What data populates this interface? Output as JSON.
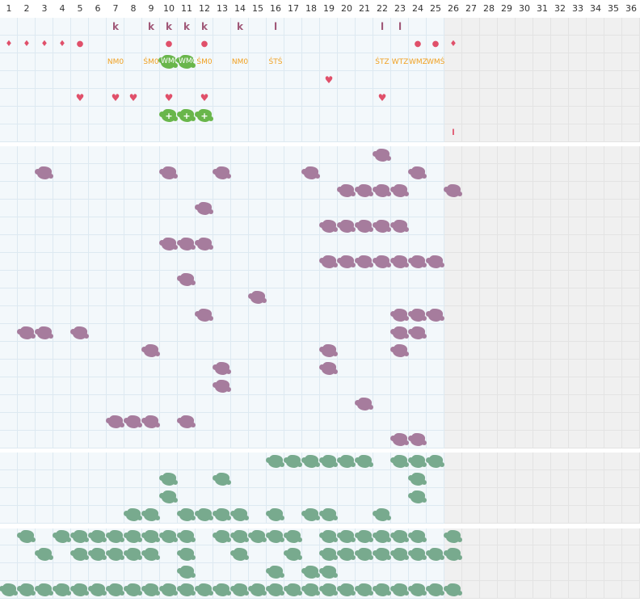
{
  "columns": [
    "1",
    "2",
    "3",
    "4",
    "5",
    "6",
    "7",
    "8",
    "9",
    "10",
    "11",
    "12",
    "13",
    "14",
    "15",
    "16",
    "17",
    "18",
    "19",
    "20",
    "21",
    "22",
    "23",
    "24",
    "25",
    "26",
    "27",
    "28",
    "29",
    "30",
    "31",
    "32",
    "33",
    "34",
    "35",
    "36"
  ],
  "symbols": {
    "drop": "♦",
    "dot": "●",
    "heart": "♥",
    "plus": "+"
  },
  "colors": {
    "purple": "#a67c9d",
    "green": "#78aa8e",
    "light_green": "#69b64b",
    "red": "#e0506a",
    "orange": "#f0a020",
    "mauve": "#a05878"
  },
  "header_row_k": [
    {
      "col": 7,
      "text": "k"
    },
    {
      "col": 9,
      "text": "k"
    },
    {
      "col": 10,
      "text": "k"
    },
    {
      "col": 11,
      "text": "k"
    },
    {
      "col": 12,
      "text": "k"
    },
    {
      "col": 14,
      "text": "k"
    },
    {
      "col": 16,
      "text": "l"
    },
    {
      "col": 22,
      "text": "l"
    },
    {
      "col": 23,
      "text": "l"
    },
    {
      "col": 26,
      "text": "l"
    }
  ],
  "drops": [
    1,
    2,
    3,
    4,
    26
  ],
  "dots": [
    5,
    10,
    12,
    24,
    25
  ],
  "hearts": [
    {
      "col": 19,
      "row": 4
    },
    {
      "col": 5,
      "row": 5
    },
    {
      "col": 7,
      "row": 5
    },
    {
      "col": 8,
      "row": 5
    },
    {
      "col": 10,
      "row": 5
    },
    {
      "col": 12,
      "row": 5
    },
    {
      "col": 22,
      "row": 5
    }
  ],
  "codes": [
    {
      "col": 7,
      "text": "NМ0"
    },
    {
      "col": 9,
      "text": "ŚМ0"
    },
    {
      "col": 12,
      "text": "ŚМ0"
    },
    {
      "col": 14,
      "text": "NМ0"
    },
    {
      "col": 16,
      "text": "ŚТŚ"
    },
    {
      "col": 22,
      "text": "ŚТZ"
    },
    {
      "col": 23,
      "text": "WТZ"
    },
    {
      "col": 24,
      "text": "WМZ"
    },
    {
      "col": 25,
      "text": "WМŚ"
    }
  ],
  "green_codes": [
    {
      "col": 10,
      "text": "WМ0"
    },
    {
      "col": 11,
      "text": "WМ0"
    }
  ],
  "plus_blobs": [
    10,
    11,
    12
  ],
  "purple_blobs": [
    [
      8,
      22
    ],
    [
      9,
      3
    ],
    [
      9,
      10
    ],
    [
      9,
      13
    ],
    [
      9,
      18
    ],
    [
      9,
      24
    ],
    [
      10,
      20
    ],
    [
      10,
      21
    ],
    [
      10,
      22
    ],
    [
      10,
      23
    ],
    [
      10,
      26
    ],
    [
      11,
      12
    ],
    [
      12,
      19
    ],
    [
      12,
      20
    ],
    [
      12,
      21
    ],
    [
      12,
      22
    ],
    [
      12,
      23
    ],
    [
      13,
      10
    ],
    [
      13,
      11
    ],
    [
      13,
      12
    ],
    [
      14,
      19
    ],
    [
      14,
      20
    ],
    [
      14,
      21
    ],
    [
      14,
      22
    ],
    [
      14,
      23
    ],
    [
      14,
      24
    ],
    [
      14,
      25
    ],
    [
      15,
      11
    ],
    [
      16,
      15
    ],
    [
      17,
      12
    ],
    [
      17,
      23
    ],
    [
      17,
      24
    ],
    [
      17,
      25
    ],
    [
      18,
      2
    ],
    [
      18,
      3
    ],
    [
      18,
      5
    ],
    [
      18,
      23
    ],
    [
      18,
      24
    ],
    [
      19,
      9
    ],
    [
      19,
      19
    ],
    [
      19,
      23
    ],
    [
      20,
      13
    ],
    [
      20,
      19
    ],
    [
      21,
      13
    ],
    [
      22,
      21
    ],
    [
      23,
      7
    ],
    [
      23,
      8
    ],
    [
      23,
      9
    ],
    [
      23,
      11
    ],
    [
      24,
      23
    ],
    [
      24,
      24
    ]
  ],
  "green_blobs": [
    [
      25,
      16
    ],
    [
      25,
      17
    ],
    [
      25,
      18
    ],
    [
      25,
      19
    ],
    [
      25,
      20
    ],
    [
      25,
      21
    ],
    [
      25,
      23
    ],
    [
      25,
      24
    ],
    [
      25,
      25
    ],
    [
      26,
      10
    ],
    [
      26,
      13
    ],
    [
      26,
      24
    ],
    [
      27,
      10
    ],
    [
      27,
      24
    ],
    [
      28,
      8
    ],
    [
      28,
      9
    ],
    [
      28,
      11
    ],
    [
      28,
      12
    ],
    [
      28,
      13
    ],
    [
      28,
      14
    ],
    [
      28,
      16
    ],
    [
      28,
      18
    ],
    [
      28,
      19
    ],
    [
      28,
      22
    ],
    [
      29,
      2
    ],
    [
      29,
      4
    ],
    [
      29,
      5
    ],
    [
      29,
      6
    ],
    [
      29,
      7
    ],
    [
      29,
      8
    ],
    [
      29,
      9
    ],
    [
      29,
      10
    ],
    [
      29,
      11
    ],
    [
      29,
      13
    ],
    [
      29,
      14
    ],
    [
      29,
      15
    ],
    [
      29,
      16
    ],
    [
      29,
      17
    ],
    [
      29,
      19
    ],
    [
      29,
      20
    ],
    [
      29,
      21
    ],
    [
      29,
      22
    ],
    [
      29,
      23
    ],
    [
      29,
      24
    ],
    [
      29,
      26
    ],
    [
      30,
      3
    ],
    [
      30,
      5
    ],
    [
      30,
      6
    ],
    [
      30,
      7
    ],
    [
      30,
      8
    ],
    [
      30,
      9
    ],
    [
      30,
      11
    ],
    [
      30,
      14
    ],
    [
      30,
      17
    ],
    [
      30,
      19
    ],
    [
      30,
      20
    ],
    [
      30,
      21
    ],
    [
      30,
      22
    ],
    [
      30,
      23
    ],
    [
      30,
      24
    ],
    [
      30,
      25
    ],
    [
      30,
      26
    ],
    [
      31,
      11
    ],
    [
      31,
      16
    ],
    [
      31,
      18
    ],
    [
      31,
      19
    ],
    [
      32,
      1
    ],
    [
      32,
      2
    ],
    [
      32,
      3
    ],
    [
      32,
      4
    ],
    [
      32,
      5
    ],
    [
      32,
      6
    ],
    [
      32,
      7
    ],
    [
      32,
      8
    ],
    [
      32,
      9
    ],
    [
      32,
      10
    ],
    [
      32,
      11
    ],
    [
      32,
      12
    ],
    [
      32,
      13
    ],
    [
      32,
      14
    ],
    [
      32,
      15
    ],
    [
      32,
      16
    ],
    [
      32,
      17
    ],
    [
      32,
      18
    ],
    [
      32,
      19
    ],
    [
      32,
      20
    ],
    [
      32,
      21
    ],
    [
      32,
      22
    ],
    [
      32,
      23
    ],
    [
      32,
      24
    ],
    [
      32,
      25
    ],
    [
      32,
      26
    ]
  ]
}
